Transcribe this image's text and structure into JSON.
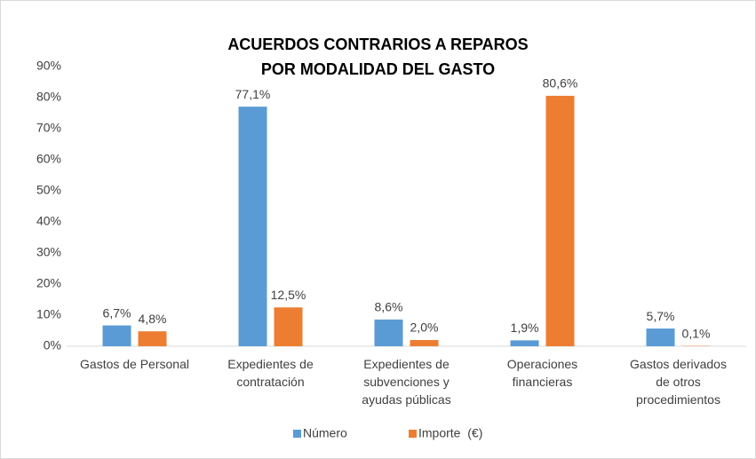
{
  "chart_data": {
    "type": "bar",
    "title": "ACUERDOS CONTRARIOS A REPAROS\nPOR MODALIDAD DEL GASTO",
    "categories": [
      "Gastos de Personal",
      "Expedientes de\ncontratación",
      "Expedientes de\nsubvenciones y\nayudas públicas",
      "Operaciones\nfinancieras",
      "Gastos derivados\nde otros\nprocedimientos"
    ],
    "series": [
      {
        "name": "Número",
        "color": "#5b9bd5",
        "values": [
          6.7,
          77.1,
          8.6,
          1.9,
          5.7
        ],
        "value_labels": [
          "6,7%",
          "77,1%",
          "8,6%",
          "1,9%",
          "5,7%"
        ]
      },
      {
        "name": "Importe  (€)",
        "color": "#ed7d31",
        "values": [
          4.8,
          12.5,
          2.0,
          80.6,
          0.1
        ],
        "value_labels": [
          "4,8%",
          "12,5%",
          "2,0%",
          "80,6%",
          "0,1%"
        ]
      }
    ],
    "ylim": [
      0,
      90
    ],
    "yticks": [
      {
        "value": 0,
        "label": "0%"
      },
      {
        "value": 10,
        "label": "10%"
      },
      {
        "value": 20,
        "label": "20%"
      },
      {
        "value": 30,
        "label": "30%"
      },
      {
        "value": 40,
        "label": "40%"
      },
      {
        "value": 50,
        "label": "50%"
      },
      {
        "value": 60,
        "label": "60%"
      },
      {
        "value": 70,
        "label": "70%"
      },
      {
        "value": 80,
        "label": "80%"
      },
      {
        "value": 90,
        "label": "90%"
      }
    ],
    "grid": false,
    "legend": "bottom"
  }
}
